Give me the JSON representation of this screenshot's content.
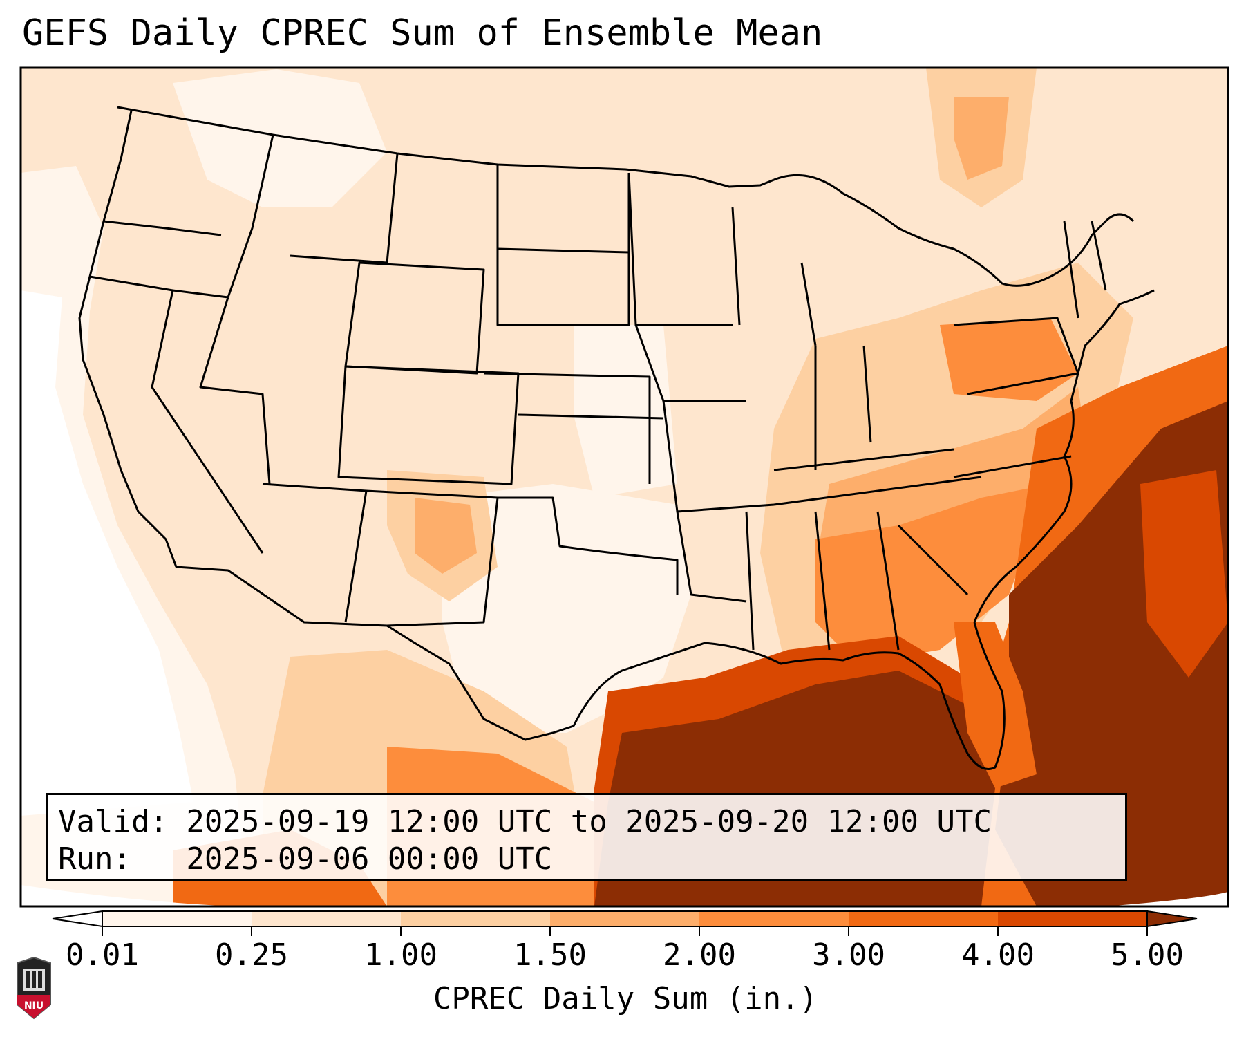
{
  "title": "GEFS Daily CPREC Sum of Ensemble Mean",
  "info": {
    "valid": "Valid: 2025-09-19 12:00 UTC to 2025-09-20 12:00 UTC",
    "run": "Run:   2025-09-06 00:00 UTC"
  },
  "colorbar": {
    "label": "CPREC Daily Sum (in.)",
    "ticks": [
      "0.01",
      "0.25",
      "1.00",
      "1.50",
      "2.00",
      "3.00",
      "4.00",
      "5.00"
    ],
    "colors": [
      "#fff5eb",
      "#fee6ce",
      "#fdd0a2",
      "#fdae6b",
      "#fd8d3c",
      "#f16913",
      "#d94801",
      "#8c2d04"
    ],
    "under_color": "#ffffff",
    "over_color": "#8c2d04",
    "extend": "both"
  },
  "logo": {
    "text": "NIU",
    "color": "#c8102e"
  },
  "map": {
    "projection": "lambert-conformal",
    "region": "CONUS",
    "borders": [
      "coastline",
      "country",
      "state"
    ],
    "field": "CPREC daily sum, ensemble mean"
  }
}
